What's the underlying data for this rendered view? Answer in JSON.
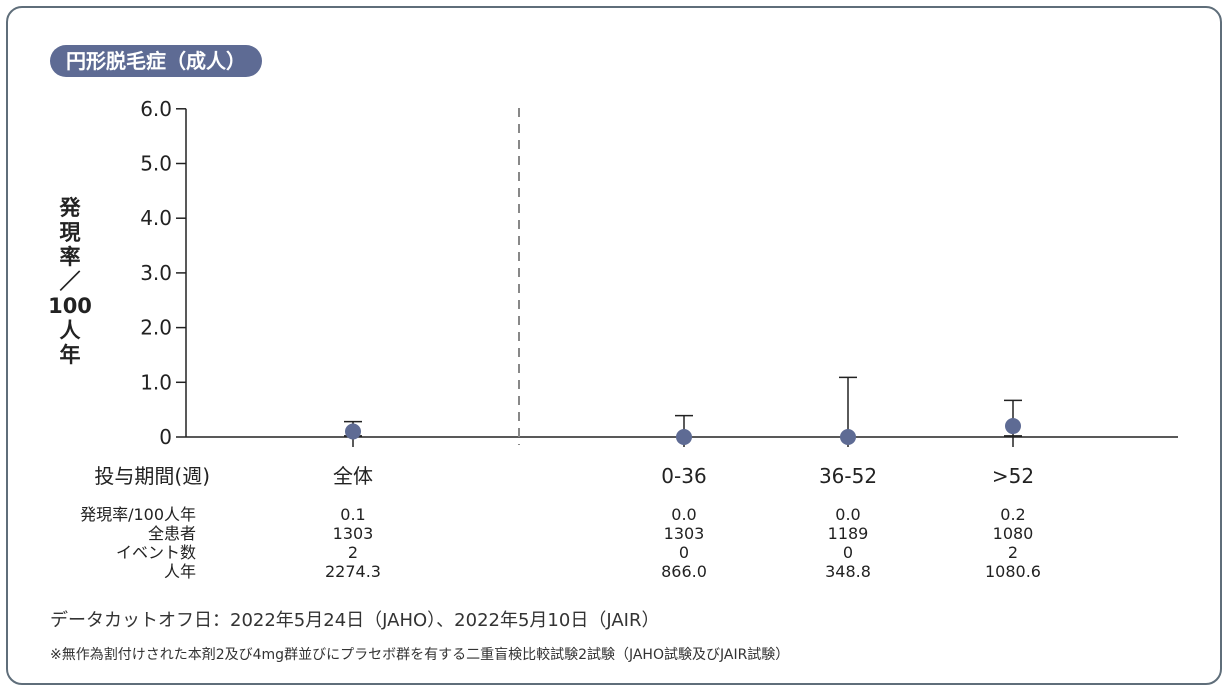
{
  "header": {
    "title": "円形脱毛症（成人）"
  },
  "chart_data": {
    "type": "scatter",
    "ylabel": "発現率／100人年",
    "ylim": [
      0,
      6.0
    ],
    "yticks": [
      "0",
      "1.0",
      "2.0",
      "3.0",
      "4.0",
      "5.0",
      "6.0"
    ],
    "xlabel": "投与期間(週)",
    "categories": [
      "全体",
      "0-36",
      "36-52",
      ">52"
    ],
    "values": [
      0.1,
      0.0,
      0.0,
      0.2
    ],
    "error_upper": [
      0.28,
      0.39,
      1.09,
      0.67
    ],
    "error_lower": [
      0.02,
      null,
      null,
      0.02
    ],
    "marker_color": "#5e6b94",
    "divider": "dashed line between 全体 and 0-36",
    "table": {
      "row_labels": [
        "発現率/100人年",
        "全患者",
        "イベント数",
        "人年"
      ],
      "columns": [
        [
          "0.1",
          "1303",
          "2",
          "2274.3"
        ],
        [
          "0.0",
          "1303",
          "0",
          "866.0"
        ],
        [
          "0.0",
          "1189",
          "0",
          "348.8"
        ],
        [
          "0.2",
          "1080",
          "2",
          "1080.6"
        ]
      ]
    }
  },
  "footnotes": {
    "cutoff": "データカットオフ日：2022年5月24日（JAHO）、2022年5月10日（JAIR）",
    "note": "※無作為割付けされた本剤2及び4mg群並びにプラセボ群を有する二重盲検比較試験2試験（JAHO試験及びJAIR試験）"
  }
}
